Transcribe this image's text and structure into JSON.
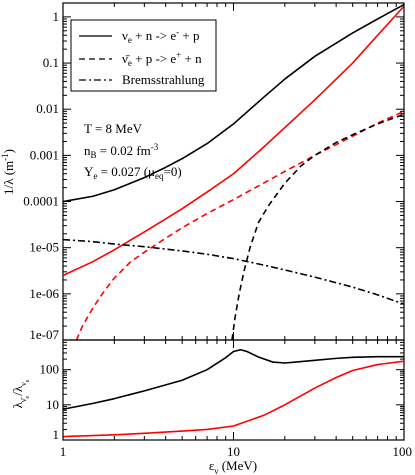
{
  "chart_data": [
    {
      "type": "line",
      "xlabel": "ε_ν (MeV)",
      "ylabel": "1/λ (m⁻¹)",
      "xscale": "log",
      "yscale": "log",
      "xlim": [
        1,
        100
      ],
      "ylim": [
        1e-07,
        2
      ],
      "grid": false,
      "legend_position": "top-left",
      "x_ticks": [
        1,
        10,
        100
      ],
      "x_tick_labels": [
        "1",
        "10",
        "100"
      ],
      "y_ticks": [
        1e-07,
        1e-06,
        1e-05,
        0.0001,
        0.001,
        0.01,
        0.1,
        1
      ],
      "y_tick_labels": [
        "1e-07",
        "1e-06",
        "1e-05",
        "0.0001",
        "0.001",
        "0.01",
        "0.1",
        "1"
      ],
      "legend": [
        {
          "label": "ν_e + n -> e⁻ + p",
          "dash": "solid"
        },
        {
          "label": "ν̄_e + p -> e⁺ + n",
          "dash": "dashed"
        },
        {
          "label": "Bremsstrahlung",
          "dash": "dashdot"
        }
      ],
      "annotations": [
        {
          "id": "temp",
          "text": "T = 8 MeV"
        },
        {
          "id": "density",
          "text": "n_B = 0.02 fm^-3"
        },
        {
          "id": "ye",
          "text": "Y_e = 0.027 (μ_eq=0)"
        }
      ],
      "series": [
        {
          "legend_index": 0,
          "color": "#000000",
          "dash": "solid",
          "x": [
            1,
            1.5,
            2,
            3,
            4,
            5,
            7,
            10,
            15,
            20,
            30,
            50,
            70,
            100
          ],
          "y": [
            0.0001,
            0.00013,
            0.00018,
            0.00033,
            0.00055,
            0.00085,
            0.0018,
            0.0048,
            0.018,
            0.045,
            0.14,
            0.45,
            0.9,
            1.85
          ]
        },
        {
          "color": "#ff0000",
          "dash": "solid",
          "x": [
            1,
            1.5,
            2,
            3,
            4,
            5,
            7,
            10,
            15,
            20,
            30,
            50,
            70,
            100
          ],
          "y": [
            2.5e-06,
            5e-06,
            9e-06,
            2.2e-05,
            4.2e-05,
            7e-05,
            0.00016,
            0.0004,
            0.0015,
            0.004,
            0.016,
            0.1,
            0.4,
            1.7
          ]
        },
        {
          "color": "#ff0000",
          "dash": "dashed",
          "x": [
            1.2,
            1.3,
            1.5,
            1.7,
            2,
            2.5,
            3,
            4,
            5,
            7,
            10,
            15,
            20,
            30,
            50,
            70,
            100
          ],
          "y": [
            1e-07,
            2e-07,
            5e-07,
            1e-06,
            2.2e-06,
            5e-06,
            8e-06,
            1.6e-05,
            2.7e-05,
            5.5e-05,
            0.00011,
            0.00025,
            0.00045,
            0.001,
            0.0026,
            0.005,
            0.009
          ]
        },
        {
          "legend_index": 1,
          "color": "#000000",
          "dash": "dashed",
          "x": [
            9.8,
            10.2,
            10.8,
            11.5,
            12.5,
            14,
            16,
            20,
            25,
            30,
            40,
            50,
            70,
            100
          ],
          "y": [
            1e-07,
            3e-07,
            1e-06,
            3e-06,
            1e-05,
            3.5e-05,
            8e-05,
            0.00025,
            0.0006,
            0.001,
            0.0019,
            0.0028,
            0.0048,
            0.0078
          ]
        },
        {
          "legend_index": 2,
          "color": "#000000",
          "dash": "dashdot",
          "x": [
            1,
            1.5,
            2,
            3,
            5,
            7,
            10,
            15,
            20,
            30,
            50,
            70,
            100
          ],
          "y": [
            1.5e-05,
            1.35e-05,
            1.2e-05,
            1.05e-05,
            8.5e-06,
            7.2e-06,
            5.8e-06,
            4.2e-06,
            3.3e-06,
            2.3e-06,
            1.4e-06,
            9.5e-07,
            6e-07
          ]
        }
      ]
    },
    {
      "type": "line",
      "xlabel": "ε_ν (MeV)",
      "ylabel": "λ_ν̄e / λ_νe",
      "xscale": "log",
      "yscale": "log",
      "xlim": [
        1,
        100
      ],
      "ylim": [
        1,
        700
      ],
      "grid": false,
      "x_ticks": [
        1,
        10,
        100
      ],
      "x_tick_labels": [
        "1",
        "10",
        "100"
      ],
      "y_ticks": [
        1,
        10,
        100
      ],
      "y_tick_labels": [
        "1",
        "10",
        "100"
      ],
      "series": [
        {
          "color": "#000000",
          "dash": "solid",
          "x": [
            1,
            1.5,
            2,
            3,
            5,
            7,
            9,
            10,
            11,
            12,
            14,
            17,
            20,
            25,
            30,
            40,
            50,
            70,
            100
          ],
          "y": [
            7.5,
            11,
            15,
            25,
            50,
            100,
            220,
            330,
            370,
            330,
            230,
            165,
            155,
            170,
            185,
            210,
            225,
            235,
            235
          ]
        },
        {
          "color": "#ff0000",
          "dash": "solid",
          "x": [
            1,
            2,
            3,
            5,
            7,
            10,
            15,
            20,
            30,
            40,
            50,
            70,
            100
          ],
          "y": [
            1.25,
            1.4,
            1.55,
            1.8,
            2,
            2.5,
            5,
            10,
            30,
            60,
            95,
            140,
            175
          ]
        }
      ]
    }
  ]
}
